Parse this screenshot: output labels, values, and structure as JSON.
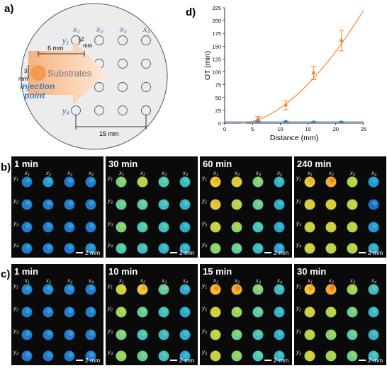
{
  "panel_a": {
    "label": "a)",
    "cols": [
      "x",
      "x",
      "x",
      "x"
    ],
    "col_subs": [
      "1",
      "2",
      "3",
      "4"
    ],
    "rows": [
      "y",
      "y",
      "y",
      "y"
    ],
    "row_subs": [
      "1",
      "2",
      "3",
      "4"
    ],
    "dim_6mm": "6 mm",
    "dim_2mm_a": "2",
    "dim_2mm_b": "mm",
    "dim_3mm_a": "3",
    "dim_3mm_b": "mm",
    "substrates": "Substrates",
    "injection_1": "Injection",
    "injection_2": "point",
    "dim_15mm": "15 mm",
    "colors": {
      "blue": "#3d7cc0",
      "orange": "#f5a25d",
      "arrow": "#fbd9b9"
    }
  },
  "panel_d": {
    "label": "d)",
    "chart_data": {
      "type": "scatter",
      "xlabel": "Distance (mm)",
      "ylabel": "OT (min)",
      "xlim": [
        0,
        25
      ],
      "ylim": [
        0,
        225
      ],
      "xticks": [
        "0",
        "5",
        "10",
        "15",
        "20",
        "25"
      ],
      "yticks": [
        "0",
        "25",
        "50",
        "75",
        "100",
        "125",
        "150",
        "175",
        "200",
        "225"
      ],
      "series": [
        {
          "color": "#f28a30",
          "x": [
            6,
            11,
            16,
            21
          ],
          "y": [
            8,
            35,
            98,
            161
          ],
          "err": [
            5,
            9,
            13,
            20
          ]
        },
        {
          "color": "#4a7fc1",
          "x": [
            6,
            11,
            16,
            21
          ],
          "y": [
            3,
            3,
            2,
            2
          ],
          "err": [
            1,
            1,
            1,
            1
          ]
        }
      ],
      "fit": {
        "color": "#f28a30",
        "x_end": 25,
        "y_end": 220
      }
    }
  },
  "panel_b": {
    "label": "b)",
    "times": [
      "1 min",
      "30 min",
      "60 min",
      "240 min"
    ],
    "scale": "2 mm"
  },
  "panel_c": {
    "label": "c)",
    "times": [
      "1 min",
      "10 min",
      "15 min",
      "30 min"
    ],
    "scale": "2 mm"
  },
  "grid_labels": {
    "x": "x",
    "y": "y",
    "subs": [
      "1",
      "2",
      "3",
      "4"
    ]
  },
  "heat": {
    "b": [
      [
        [
          0.1,
          0.15,
          0.1,
          0.1
        ],
        [
          0.1,
          0.1,
          0.1,
          0.1
        ],
        [
          0.1,
          0.1,
          0.1,
          0.1
        ],
        [
          0.1,
          0.1,
          0.1,
          0.12
        ]
      ],
      [
        [
          0.45,
          0.55,
          0.35,
          0.28
        ],
        [
          0.4,
          0.38,
          0.3,
          0.25
        ],
        [
          0.45,
          0.35,
          0.3,
          0.22
        ],
        [
          0.35,
          0.3,
          0.25,
          0.22
        ]
      ],
      [
        [
          0.72,
          0.65,
          0.45,
          0.25
        ],
        [
          0.68,
          0.55,
          0.4,
          0.22
        ],
        [
          0.6,
          0.5,
          0.32,
          0.2
        ],
        [
          0.48,
          0.4,
          0.28,
          0.18
        ]
      ],
      [
        [
          0.7,
          0.8,
          0.55,
          0.15
        ],
        [
          0.65,
          0.65,
          0.6,
          0.08
        ],
        [
          0.6,
          0.62,
          0.55,
          0.15
        ],
        [
          0.62,
          0.58,
          0.55,
          0.2
        ]
      ]
    ],
    "c": [
      [
        [
          0.12,
          0.12,
          0.12,
          0.1
        ],
        [
          0.1,
          0.1,
          0.1,
          0.1
        ],
        [
          0.1,
          0.1,
          0.1,
          0.1
        ],
        [
          0.1,
          0.1,
          0.1,
          0.1
        ]
      ],
      [
        [
          0.62,
          0.72,
          0.4,
          0.22
        ],
        [
          0.52,
          0.4,
          0.3,
          0.2
        ],
        [
          0.45,
          0.32,
          0.28,
          0.22
        ],
        [
          0.5,
          0.4,
          0.3,
          0.2
        ]
      ],
      [
        [
          0.78,
          0.8,
          0.45,
          0.28
        ],
        [
          0.65,
          0.5,
          0.38,
          0.24
        ],
        [
          0.58,
          0.42,
          0.32,
          0.24
        ],
        [
          0.6,
          0.48,
          0.35,
          0.25
        ]
      ],
      [
        [
          0.75,
          0.82,
          0.52,
          0.3
        ],
        [
          0.62,
          0.55,
          0.42,
          0.26
        ],
        [
          0.55,
          0.48,
          0.38,
          0.26
        ],
        [
          0.62,
          0.52,
          0.42,
          0.28
        ]
      ]
    ]
  }
}
